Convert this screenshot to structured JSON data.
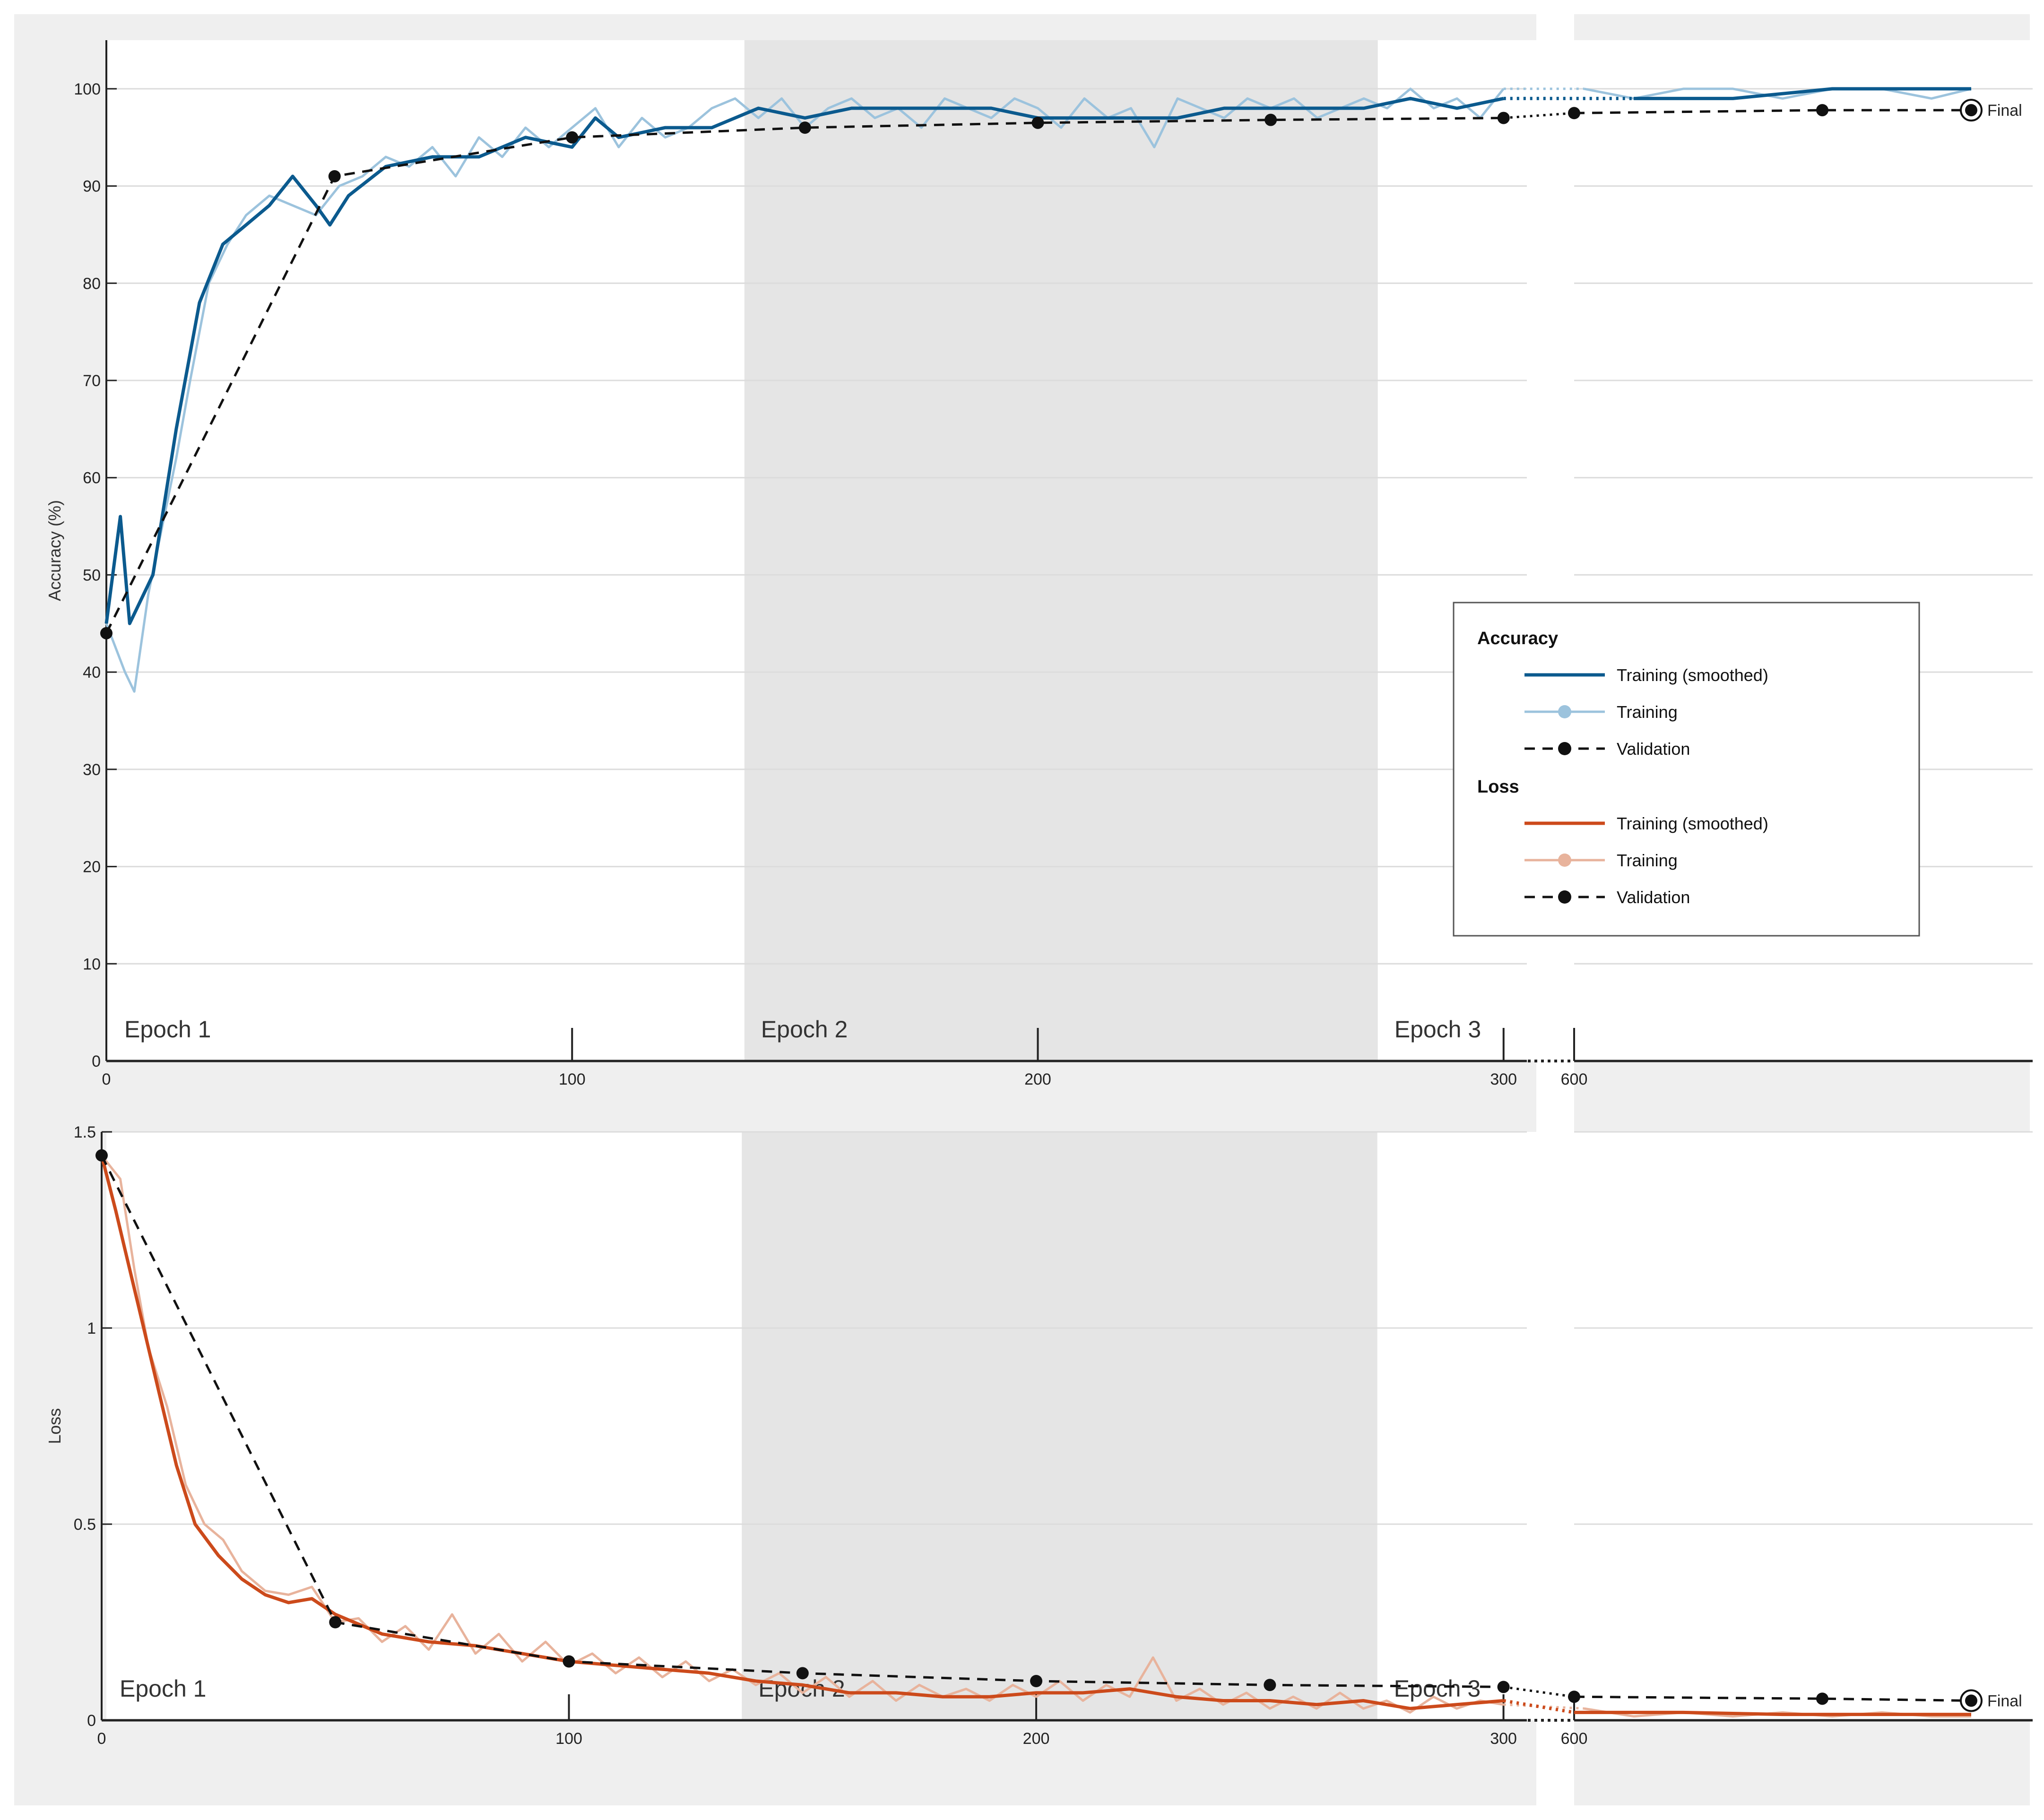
{
  "chart_data": [
    {
      "type": "line",
      "ylabel": "Accuracy (%)",
      "ylim": [
        0,
        105
      ],
      "yticks": [
        0,
        10,
        20,
        30,
        40,
        50,
        60,
        70,
        80,
        90,
        100
      ],
      "xticks": [
        "0",
        "100",
        "200",
        "300",
        "600"
      ],
      "grid": true,
      "epochs": [
        {
          "label": "Epoch 1",
          "start": 0,
          "end": 137
        },
        {
          "label": "Epoch 2",
          "start": 137,
          "end": 273
        },
        {
          "label": "Epoch 3",
          "start": 273,
          "end": 410
        }
      ],
      "final_label": "Final",
      "series": [
        {
          "name": "Training (smoothed)",
          "color": "#0b5a8e",
          "points": [
            [
              0,
              45
            ],
            [
              3,
              56
            ],
            [
              5,
              45
            ],
            [
              10,
              50
            ],
            [
              15,
              65
            ],
            [
              20,
              78
            ],
            [
              25,
              84
            ],
            [
              30,
              86
            ],
            [
              35,
              88
            ],
            [
              40,
              91
            ],
            [
              45,
              88
            ],
            [
              48,
              86
            ],
            [
              52,
              89
            ],
            [
              60,
              92
            ],
            [
              70,
              93
            ],
            [
              80,
              93
            ],
            [
              90,
              95
            ],
            [
              100,
              94
            ],
            [
              105,
              97
            ],
            [
              110,
              95
            ],
            [
              120,
              96
            ],
            [
              130,
              96
            ],
            [
              140,
              98
            ],
            [
              150,
              97
            ],
            [
              160,
              98
            ],
            [
              170,
              98
            ],
            [
              180,
              98
            ],
            [
              190,
              98
            ],
            [
              200,
              97
            ],
            [
              210,
              97
            ],
            [
              220,
              97
            ],
            [
              230,
              97
            ],
            [
              240,
              98
            ],
            [
              250,
              98
            ],
            [
              260,
              98
            ],
            [
              270,
              98
            ],
            [
              280,
              99
            ],
            [
              290,
              98
            ],
            [
              300,
              99
            ],
            [
              310,
              99
            ],
            [
              330,
              99
            ],
            [
              350,
              99
            ],
            [
              370,
              100
            ],
            [
              390,
              100
            ],
            [
              398,
              100
            ]
          ]
        },
        {
          "name": "Training",
          "color": "#9cc3dd",
          "points": [
            [
              0,
              45
            ],
            [
              4,
              40
            ],
            [
              6,
              38
            ],
            [
              9,
              48
            ],
            [
              12,
              55
            ],
            [
              15,
              62
            ],
            [
              18,
              70
            ],
            [
              22,
              80
            ],
            [
              26,
              84
            ],
            [
              30,
              87
            ],
            [
              35,
              89
            ],
            [
              40,
              88
            ],
            [
              45,
              87
            ],
            [
              50,
              90
            ],
            [
              55,
              91
            ],
            [
              60,
              93
            ],
            [
              65,
              92
            ],
            [
              70,
              94
            ],
            [
              75,
              91
            ],
            [
              80,
              95
            ],
            [
              85,
              93
            ],
            [
              90,
              96
            ],
            [
              95,
              94
            ],
            [
              100,
              96
            ],
            [
              105,
              98
            ],
            [
              110,
              94
            ],
            [
              115,
              97
            ],
            [
              120,
              95
            ],
            [
              125,
              96
            ],
            [
              130,
              98
            ],
            [
              135,
              99
            ],
            [
              140,
              97
            ],
            [
              145,
              99
            ],
            [
              150,
              96
            ],
            [
              155,
              98
            ],
            [
              160,
              99
            ],
            [
              165,
              97
            ],
            [
              170,
              98
            ],
            [
              175,
              96
            ],
            [
              180,
              99
            ],
            [
              185,
              98
            ],
            [
              190,
              97
            ],
            [
              195,
              99
            ],
            [
              200,
              98
            ],
            [
              205,
              96
            ],
            [
              210,
              99
            ],
            [
              215,
              97
            ],
            [
              220,
              98
            ],
            [
              225,
              94
            ],
            [
              230,
              99
            ],
            [
              235,
              98
            ],
            [
              240,
              97
            ],
            [
              245,
              99
            ],
            [
              250,
              98
            ],
            [
              255,
              99
            ],
            [
              260,
              97
            ],
            [
              265,
              98
            ],
            [
              270,
              99
            ],
            [
              275,
              98
            ],
            [
              280,
              100
            ],
            [
              285,
              98
            ],
            [
              290,
              99
            ],
            [
              295,
              97
            ],
            [
              300,
              100
            ],
            [
              310,
              99
            ],
            [
              320,
              100
            ],
            [
              330,
              99
            ],
            [
              340,
              100
            ],
            [
              350,
              100
            ],
            [
              360,
              99
            ],
            [
              370,
              100
            ],
            [
              380,
              100
            ],
            [
              390,
              99
            ],
            [
              398,
              100
            ]
          ]
        },
        {
          "name": "Validation",
          "color": "#111111",
          "points": [
            [
              0,
              44
            ],
            [
              49,
              91
            ],
            [
              100,
              95
            ],
            [
              150,
              96
            ],
            [
              200,
              96.5
            ],
            [
              250,
              96.8
            ],
            [
              300,
              97
            ],
            [
              318,
              97.5
            ],
            [
              368,
              97.8
            ],
            [
              398,
              97.8
            ]
          ]
        }
      ]
    },
    {
      "type": "line",
      "ylabel": "Loss",
      "ylim": [
        0,
        1.5
      ],
      "yticks": [
        0,
        0.5,
        1,
        1.5
      ],
      "xticks": [
        "0",
        "100",
        "200",
        "300",
        "600"
      ],
      "grid": true,
      "epochs": [
        {
          "label": "Epoch 1",
          "start": 0,
          "end": 137
        },
        {
          "label": "Epoch 2",
          "start": 137,
          "end": 273
        },
        {
          "label": "Epoch 3",
          "start": 273,
          "end": 410
        }
      ],
      "final_label": "Final",
      "series": [
        {
          "name": "Training (smoothed)",
          "color": "#cc4a1b",
          "points": [
            [
              0,
              1.44
            ],
            [
              3,
              1.3
            ],
            [
              5,
              1.2
            ],
            [
              8,
              1.05
            ],
            [
              12,
              0.85
            ],
            [
              16,
              0.65
            ],
            [
              20,
              0.5
            ],
            [
              25,
              0.42
            ],
            [
              30,
              0.36
            ],
            [
              35,
              0.32
            ],
            [
              40,
              0.3
            ],
            [
              45,
              0.31
            ],
            [
              50,
              0.27
            ],
            [
              60,
              0.22
            ],
            [
              70,
              0.2
            ],
            [
              80,
              0.19
            ],
            [
              90,
              0.17
            ],
            [
              100,
              0.15
            ],
            [
              110,
              0.14
            ],
            [
              120,
              0.13
            ],
            [
              130,
              0.12
            ],
            [
              140,
              0.1
            ],
            [
              150,
              0.09
            ],
            [
              160,
              0.07
            ],
            [
              170,
              0.07
            ],
            [
              180,
              0.06
            ],
            [
              190,
              0.06
            ],
            [
              200,
              0.07
            ],
            [
              210,
              0.07
            ],
            [
              220,
              0.08
            ],
            [
              230,
              0.06
            ],
            [
              240,
              0.05
            ],
            [
              250,
              0.05
            ],
            [
              260,
              0.04
            ],
            [
              270,
              0.05
            ],
            [
              280,
              0.03
            ],
            [
              290,
              0.04
            ],
            [
              300,
              0.05
            ],
            [
              310,
              0.03
            ],
            [
              318,
              0.02
            ],
            [
              340,
              0.02
            ],
            [
              360,
              0.015
            ],
            [
              380,
              0.015
            ],
            [
              398,
              0.015
            ]
          ]
        },
        {
          "name": "Training",
          "color": "#e8b39c",
          "points": [
            [
              0,
              1.44
            ],
            [
              4,
              1.38
            ],
            [
              7,
              1.15
            ],
            [
              10,
              0.95
            ],
            [
              14,
              0.8
            ],
            [
              18,
              0.6
            ],
            [
              22,
              0.5
            ],
            [
              26,
              0.46
            ],
            [
              30,
              0.38
            ],
            [
              35,
              0.33
            ],
            [
              40,
              0.32
            ],
            [
              45,
              0.34
            ],
            [
              50,
              0.25
            ],
            [
              55,
              0.26
            ],
            [
              60,
              0.2
            ],
            [
              65,
              0.24
            ],
            [
              70,
              0.18
            ],
            [
              75,
              0.27
            ],
            [
              80,
              0.17
            ],
            [
              85,
              0.22
            ],
            [
              90,
              0.15
            ],
            [
              95,
              0.2
            ],
            [
              100,
              0.14
            ],
            [
              105,
              0.17
            ],
            [
              110,
              0.12
            ],
            [
              115,
              0.16
            ],
            [
              120,
              0.11
            ],
            [
              125,
              0.15
            ],
            [
              130,
              0.1
            ],
            [
              135,
              0.13
            ],
            [
              140,
              0.09
            ],
            [
              145,
              0.12
            ],
            [
              150,
              0.07
            ],
            [
              155,
              0.11
            ],
            [
              160,
              0.06
            ],
            [
              165,
              0.1
            ],
            [
              170,
              0.05
            ],
            [
              175,
              0.09
            ],
            [
              180,
              0.06
            ],
            [
              185,
              0.08
            ],
            [
              190,
              0.05
            ],
            [
              195,
              0.09
            ],
            [
              200,
              0.06
            ],
            [
              205,
              0.1
            ],
            [
              210,
              0.05
            ],
            [
              215,
              0.09
            ],
            [
              220,
              0.06
            ],
            [
              225,
              0.16
            ],
            [
              230,
              0.05
            ],
            [
              235,
              0.08
            ],
            [
              240,
              0.04
            ],
            [
              245,
              0.07
            ],
            [
              250,
              0.03
            ],
            [
              255,
              0.06
            ],
            [
              260,
              0.03
            ],
            [
              265,
              0.07
            ],
            [
              270,
              0.03
            ],
            [
              275,
              0.05
            ],
            [
              280,
              0.02
            ],
            [
              285,
              0.06
            ],
            [
              290,
              0.03
            ],
            [
              295,
              0.05
            ],
            [
              300,
              0.04
            ],
            [
              310,
              0.02
            ],
            [
              320,
              0.03
            ],
            [
              330,
              0.01
            ],
            [
              340,
              0.02
            ],
            [
              350,
              0.01
            ],
            [
              360,
              0.02
            ],
            [
              370,
              0.01
            ],
            [
              380,
              0.02
            ],
            [
              390,
              0.01
            ],
            [
              398,
              0.01
            ]
          ]
        },
        {
          "name": "Validation",
          "color": "#111111",
          "points": [
            [
              0,
              1.44
            ],
            [
              50,
              0.25
            ],
            [
              100,
              0.15
            ],
            [
              150,
              0.12
            ],
            [
              200,
              0.1
            ],
            [
              250,
              0.09
            ],
            [
              300,
              0.085
            ],
            [
              318,
              0.06
            ],
            [
              368,
              0.055
            ],
            [
              398,
              0.05
            ]
          ]
        }
      ]
    }
  ],
  "legend": {
    "placement": "right",
    "groups": [
      {
        "heading": "Accuracy",
        "items": [
          {
            "label": "Training (smoothed)",
            "color": "#0b5a8e",
            "style": "solid"
          },
          {
            "label": "Training",
            "color": "#9cc3dd",
            "style": "dot"
          },
          {
            "label": "Validation",
            "color": "#111111",
            "style": "dashed"
          }
        ]
      },
      {
        "heading": "Loss",
        "items": [
          {
            "label": "Training (smoothed)",
            "color": "#cc4a1b",
            "style": "solid"
          },
          {
            "label": "Training",
            "color": "#e8b39c",
            "style": "dot"
          },
          {
            "label": "Validation",
            "color": "#111111",
            "style": "dashed"
          }
        ]
      }
    ]
  }
}
